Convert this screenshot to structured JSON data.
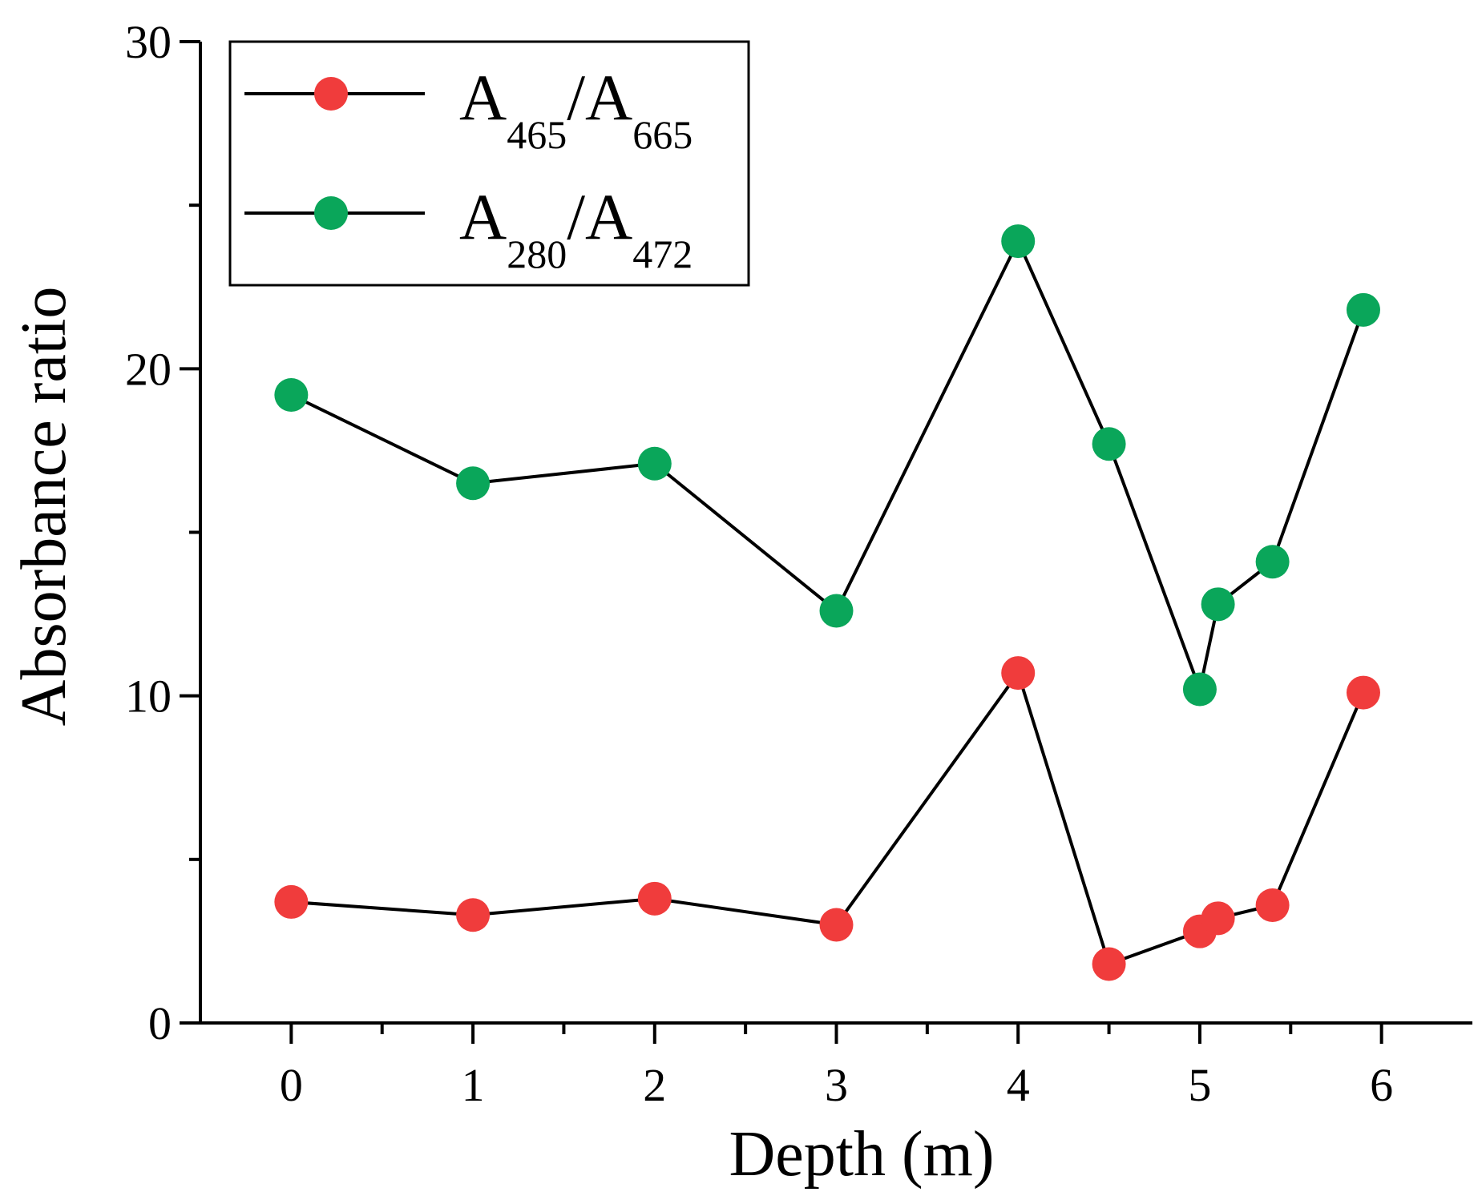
{
  "chart_data": {
    "type": "line",
    "xlabel": "Depth (m)",
    "ylabel": "Absorbance ratio",
    "xlim": [
      -0.5,
      6.5
    ],
    "ylim": [
      0,
      30
    ],
    "xticks": [
      0,
      1,
      2,
      3,
      4,
      5,
      6
    ],
    "xtick_labels": [
      "0",
      "1",
      "2",
      "3",
      "4",
      "5",
      "6"
    ],
    "yticks": [
      0,
      10,
      20,
      30
    ],
    "ytick_labels": [
      "0",
      "10",
      "20",
      "30"
    ],
    "y_minor_ticks": [
      5,
      15,
      25
    ],
    "x_minor_ticks": [
      0.5,
      1.5,
      2.5,
      3.5,
      4.5,
      5.5
    ],
    "grid": false,
    "legend_position": "top-left",
    "series": [
      {
        "name": "A465/A665",
        "label_main": "A",
        "label_sub1": "465",
        "label_mid": "/A",
        "label_sub2": "665",
        "color": "#f03c3c",
        "x": [
          0,
          1,
          2,
          3,
          4,
          4.5,
          5,
          5.1,
          5.4,
          5.9
        ],
        "values": [
          3.7,
          3.3,
          3.8,
          3.0,
          10.7,
          1.8,
          2.8,
          3.2,
          3.6,
          10.1
        ]
      },
      {
        "name": "A280/A472",
        "label_main": "A",
        "label_sub1": "280",
        "label_mid": "/A",
        "label_sub2": "472",
        "color": "#0aa65a",
        "x": [
          0,
          1,
          2,
          3,
          4,
          4.5,
          5,
          5.1,
          5.4,
          5.9
        ],
        "values": [
          19.2,
          16.5,
          17.1,
          12.6,
          23.9,
          17.7,
          10.2,
          12.8,
          14.1,
          21.8
        ]
      }
    ]
  }
}
